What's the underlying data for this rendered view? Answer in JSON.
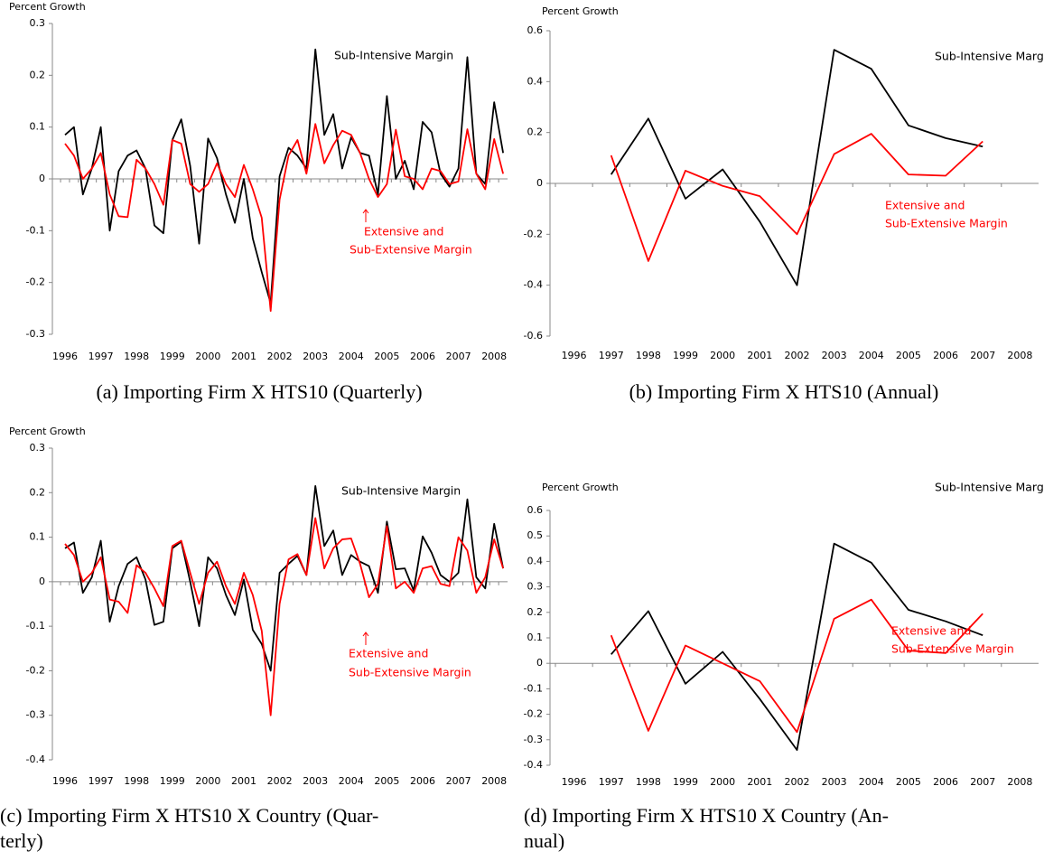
{
  "charts": [
    {
      "chart_data": {
        "type": "line",
        "ylabel": "Percent Growth",
        "categories": [
          "1996",
          null,
          null,
          null,
          "1997",
          null,
          null,
          null,
          "1998",
          null,
          null,
          null,
          "1999",
          null,
          null,
          null,
          "2000",
          null,
          null,
          null,
          "2001",
          null,
          null,
          null,
          "2002",
          null,
          null,
          null,
          "2003",
          null,
          null,
          null,
          "2004",
          null,
          null,
          null,
          "2005",
          null,
          null,
          null,
          "2006",
          null,
          null,
          null,
          "2007",
          null,
          null,
          null,
          "2008",
          null
        ],
        "series": [
          {
            "color": "#000000",
            "values": [
              0.085,
              0.1,
              -0.03,
              0.02,
              0.1,
              -0.1,
              0.015,
              0.045,
              0.055,
              0.02,
              -0.09,
              -0.105,
              0.075,
              0.115,
              0.025,
              -0.125,
              0.078,
              0.04,
              -0.03,
              -0.085,
              0.0,
              -0.115,
              -0.18,
              -0.24,
              0.005,
              0.06,
              0.045,
              0.02,
              0.25,
              0.085,
              0.125,
              0.02,
              0.08,
              0.05,
              0.045,
              -0.03,
              0.16,
              0.0,
              0.035,
              -0.02,
              0.11,
              0.09,
              0.01,
              -0.015,
              0.02,
              0.235,
              0.01,
              -0.01,
              0.148,
              0.05
            ]
          },
          {
            "color": "#ff0000",
            "values": [
              0.068,
              0.045,
              0.0,
              0.02,
              0.05,
              -0.03,
              -0.072,
              -0.074,
              0.037,
              0.02,
              -0.01,
              -0.05,
              0.075,
              0.068,
              -0.01,
              -0.025,
              -0.01,
              0.03,
              -0.01,
              -0.035,
              0.027,
              -0.02,
              -0.075,
              -0.255,
              -0.04,
              0.045,
              0.075,
              0.01,
              0.106,
              0.03,
              0.065,
              0.093,
              0.085,
              0.05,
              0.0,
              -0.035,
              -0.01,
              0.095,
              0.005,
              0.0,
              -0.02,
              0.02,
              0.015,
              -0.01,
              -0.005,
              0.096,
              0.01,
              -0.02,
              0.077,
              0.01
            ]
          }
        ],
        "annotations": [
          "Sub-Intensive Margin",
          "Extensive and",
          "Sub-Extensive Margin"
        ],
        "ylim": [
          -0.3,
          0.3
        ],
        "yticks": [
          0.3,
          0.2,
          0.1,
          0,
          -0.1,
          -0.2,
          -0.3
        ],
        "grid": false
      },
      "caption": [
        "(a) Importing Firm X HTS10 (Quarterly)"
      ]
    },
    {
      "chart_data": {
        "type": "line",
        "ylabel": "Percent Growth",
        "categories": [
          "1996",
          "1997",
          "1998",
          "1999",
          "2000",
          "2001",
          "2002",
          "2003",
          "2004",
          "2005",
          "2006",
          "2007",
          "2008"
        ],
        "series": [
          {
            "color": "#000000",
            "values": [
              null,
              0.035,
              0.255,
              -0.06,
              0.055,
              -0.15,
              -0.4,
              0.525,
              0.45,
              0.228,
              0.178,
              0.145,
              null
            ]
          },
          {
            "color": "#ff0000",
            "values": [
              null,
              0.11,
              -0.305,
              0.05,
              -0.01,
              -0.05,
              -0.2,
              0.115,
              0.195,
              0.035,
              0.03,
              0.165,
              null
            ]
          }
        ],
        "annotations": [
          "Sub-Intensive Margin",
          "Extensive and",
          "Sub-Extensive Margin"
        ],
        "ylim": [
          -0.6,
          0.6
        ],
        "yticks": [
          0.6,
          0.4,
          0.2,
          0,
          -0.2,
          -0.4,
          -0.6
        ],
        "grid": false
      },
      "caption": [
        "(b) Importing Firm X HTS10 (Annual)"
      ]
    },
    {
      "chart_data": {
        "type": "line",
        "ylabel": "Percent Growth",
        "categories": [
          "1996",
          null,
          null,
          null,
          "1997",
          null,
          null,
          null,
          "1998",
          null,
          null,
          null,
          "1999",
          null,
          null,
          null,
          "2000",
          null,
          null,
          null,
          "2001",
          null,
          null,
          null,
          "2002",
          null,
          null,
          null,
          "2003",
          null,
          null,
          null,
          "2004",
          null,
          null,
          null,
          "2005",
          null,
          null,
          null,
          "2006",
          null,
          null,
          null,
          "2007",
          null,
          null,
          null,
          "2008",
          null
        ],
        "series": [
          {
            "color": "#000000",
            "values": [
              0.075,
              0.088,
              -0.025,
              0.01,
              0.092,
              -0.09,
              -0.01,
              0.04,
              0.055,
              0.005,
              -0.097,
              -0.09,
              0.075,
              0.09,
              0.0,
              -0.1,
              0.055,
              0.03,
              -0.03,
              -0.075,
              0.005,
              -0.108,
              -0.14,
              -0.2,
              0.02,
              0.04,
              0.058,
              0.015,
              0.215,
              0.08,
              0.115,
              0.015,
              0.06,
              0.045,
              0.035,
              -0.025,
              0.135,
              0.028,
              0.03,
              -0.02,
              0.102,
              0.065,
              0.015,
              0.0,
              0.02,
              0.185,
              0.01,
              -0.015,
              0.13,
              0.03
            ]
          },
          {
            "color": "#ff0000",
            "values": [
              0.085,
              0.06,
              0.0,
              0.02,
              0.055,
              -0.04,
              -0.045,
              -0.07,
              0.037,
              0.02,
              -0.015,
              -0.055,
              0.08,
              0.092,
              0.02,
              -0.05,
              0.02,
              0.045,
              -0.01,
              -0.05,
              0.02,
              -0.03,
              -0.11,
              -0.3,
              -0.05,
              0.05,
              0.062,
              0.015,
              0.143,
              0.03,
              0.075,
              0.095,
              0.097,
              0.04,
              -0.035,
              -0.005,
              0.125,
              -0.015,
              0.0,
              -0.025,
              0.03,
              0.035,
              -0.005,
              -0.01,
              0.1,
              0.07,
              -0.025,
              0.01,
              0.095,
              0.03
            ]
          }
        ],
        "annotations": [
          "Sub-Intensive Margin",
          "Extensive and",
          "Sub-Extensive Margin"
        ],
        "ylim": [
          -0.4,
          0.3
        ],
        "yticks": [
          0.3,
          0.2,
          0.1,
          0,
          -0.1,
          -0.2,
          -0.3,
          -0.4
        ],
        "grid": false
      },
      "caption": [
        "(c) Importing Firm X HTS10 X Country (Quar-",
        "terly)"
      ]
    },
    {
      "chart_data": {
        "type": "line",
        "ylabel": "Percent Growth",
        "categories": [
          "1996",
          "1997",
          "1998",
          "1999",
          "2000",
          "2001",
          "2002",
          "2003",
          "2004",
          "2005",
          "2006",
          "2007",
          "2008"
        ],
        "series": [
          {
            "color": "#000000",
            "values": [
              null,
              0.035,
              0.205,
              -0.08,
              0.045,
              -0.14,
              -0.34,
              0.47,
              0.395,
              0.21,
              0.165,
              0.11,
              null
            ]
          },
          {
            "color": "#ff0000",
            "values": [
              null,
              0.11,
              -0.265,
              0.07,
              0.0,
              -0.07,
              -0.27,
              0.175,
              0.25,
              0.05,
              0.04,
              0.195,
              null
            ]
          }
        ],
        "annotations": [
          "Sub-Intensive Margin",
          "Extensive and",
          "Sub-Extensive Margin"
        ],
        "ylim": [
          -0.4,
          0.6
        ],
        "yticks": [
          0.6,
          0.5,
          0.4,
          0.3,
          0.2,
          0.1,
          0,
          -0.1,
          -0.2,
          -0.3,
          -0.4
        ],
        "grid": false
      },
      "caption": [
        "(d) Importing Firm X HTS10 X Country (An-",
        "nual)"
      ]
    }
  ]
}
